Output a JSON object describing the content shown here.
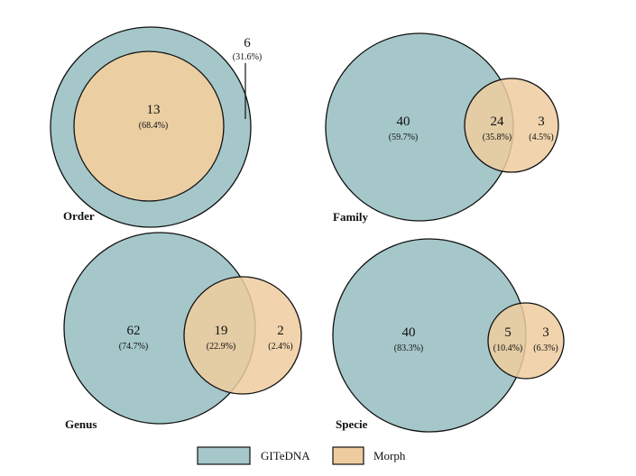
{
  "legend": {
    "set_a": {
      "label": "GITeDNA",
      "color": "#a5c7c9"
    },
    "set_b": {
      "label": "Morph",
      "color": "#efcc9f"
    }
  },
  "panels": [
    {
      "title": "Order",
      "overlap": {
        "count": "13",
        "pct": "(68.4%)"
      },
      "a_only": {
        "count": "6",
        "pct": "(31.6%)"
      },
      "b_only": null
    },
    {
      "title": "Family",
      "a_only": {
        "count": "40",
        "pct": "(59.7%)"
      },
      "overlap": {
        "count": "24",
        "pct": "(35.8%)"
      },
      "b_only": {
        "count": "3",
        "pct": "(4.5%)"
      }
    },
    {
      "title": "Genus",
      "a_only": {
        "count": "62",
        "pct": "(74.7%)"
      },
      "overlap": {
        "count": "19",
        "pct": "(22.9%)"
      },
      "b_only": {
        "count": "2",
        "pct": "(2.4%)"
      }
    },
    {
      "title": "Specie",
      "a_only": {
        "count": "40",
        "pct": "(83.3%)"
      },
      "overlap": {
        "count": "5",
        "pct": "(10.4%)"
      },
      "b_only": {
        "count": "3",
        "pct": "(6.3%)"
      }
    }
  ]
}
